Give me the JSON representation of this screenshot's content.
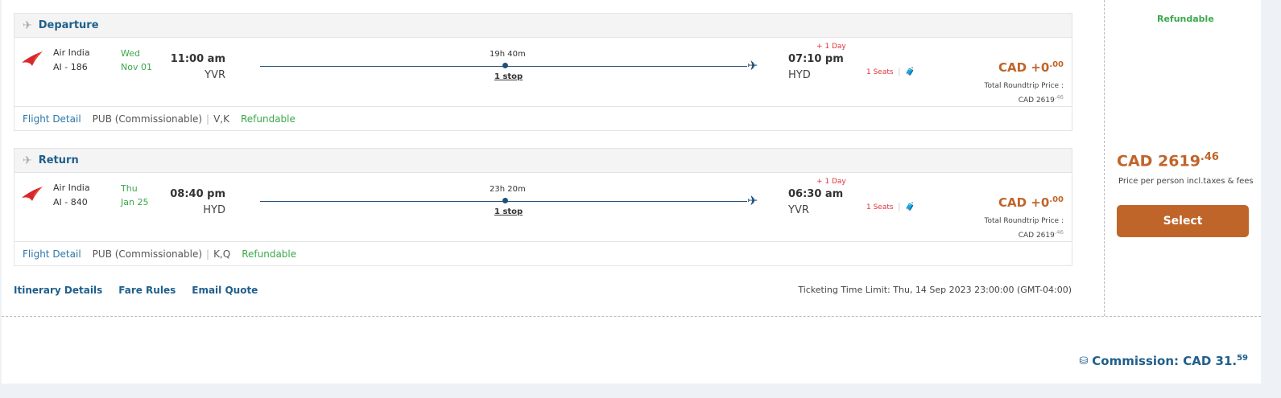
{
  "flights": [
    {
      "title": "Departure",
      "airline": "Air India",
      "flight_no": "AI - 186",
      "day": "Wed",
      "date": "Nov 01",
      "dep_time": "11:00 am",
      "dep_code": "YVR",
      "duration": "19h 40m",
      "stops": "1 stop",
      "day_offset": "+ 1 Day",
      "arr_time": "07:10 pm",
      "arr_code": "HYD",
      "seats": "1 Seats",
      "price_main": "CAD +0",
      "price_dec": ".00",
      "total_label": "Total Roundtrip Price :",
      "total_main": "CAD 2619",
      "total_dec": ".46",
      "detail_link": "Flight Detail",
      "fare_type": "PUB (Commissionable)",
      "classes": "V,K",
      "refund": "Refundable"
    },
    {
      "title": "Return",
      "airline": "Air India",
      "flight_no": "AI - 840",
      "day": "Thu",
      "date": "Jan 25",
      "dep_time": "08:40 pm",
      "dep_code": "HYD",
      "duration": "23h 20m",
      "stops": "1 stop",
      "day_offset": "+ 1 Day",
      "arr_time": "06:30 am",
      "arr_code": "YVR",
      "seats": "1 Seats",
      "price_main": "CAD +0",
      "price_dec": ".00",
      "total_label": "Total Roundtrip Price :",
      "total_main": "CAD 2619",
      "total_dec": ".46",
      "detail_link": "Flight Detail",
      "fare_type": "PUB (Commissionable)",
      "classes": "K,Q",
      "refund": "Refundable"
    }
  ],
  "links": {
    "itinerary": "Itinerary Details",
    "fare_rules": "Fare Rules",
    "email": "Email Quote"
  },
  "ticketing": "Ticketing Time Limit: Thu, 14 Sep 2023 23:00:00 (GMT-04:00)",
  "side": {
    "refundable": "Refundable",
    "price_main": "CAD 2619",
    "price_dec": ".46",
    "note": "Price per person incl.taxes & fees",
    "select": "Select"
  },
  "commission": {
    "label": "Commission: CAD 31.",
    "dec": "59"
  },
  "colors": {
    "accent": "#c0652a",
    "link": "#1f5f8b",
    "green": "#3aa84a",
    "red": "#e0323c"
  }
}
